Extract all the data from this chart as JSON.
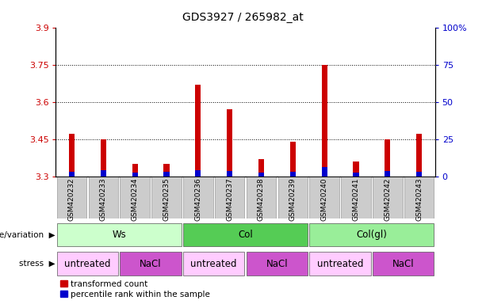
{
  "title": "GDS3927 / 265982_at",
  "samples": [
    "GSM420232",
    "GSM420233",
    "GSM420234",
    "GSM420235",
    "GSM420236",
    "GSM420237",
    "GSM420238",
    "GSM420239",
    "GSM420240",
    "GSM420241",
    "GSM420242",
    "GSM420243"
  ],
  "red_values": [
    3.47,
    3.45,
    3.35,
    3.35,
    3.67,
    3.57,
    3.37,
    3.44,
    3.75,
    3.36,
    3.45,
    3.47
  ],
  "blue_pct": [
    3.0,
    4.0,
    2.5,
    3.0,
    4.0,
    3.5,
    2.5,
    3.0,
    6.0,
    2.5,
    3.5,
    3.0
  ],
  "ymin": 3.3,
  "ymax": 3.9,
  "y2min": 0,
  "y2max": 100,
  "yticks": [
    3.3,
    3.45,
    3.6,
    3.75,
    3.9
  ],
  "y2ticks": [
    0,
    25,
    50,
    75,
    100
  ],
  "y2ticklabels": [
    "0",
    "25",
    "50",
    "75",
    "100%"
  ],
  "dotted_lines": [
    3.45,
    3.6,
    3.75
  ],
  "genotype_groups": [
    {
      "label": "Ws",
      "start": 0,
      "end": 4,
      "color": "#ccffcc"
    },
    {
      "label": "Col",
      "start": 4,
      "end": 8,
      "color": "#55cc55"
    },
    {
      "label": "Col(gl)",
      "start": 8,
      "end": 12,
      "color": "#99ee99"
    }
  ],
  "stress_groups": [
    {
      "label": "untreated",
      "start": 0,
      "end": 2,
      "color": "#ffccff"
    },
    {
      "label": "NaCl",
      "start": 2,
      "end": 4,
      "color": "#cc55cc"
    },
    {
      "label": "untreated",
      "start": 4,
      "end": 6,
      "color": "#ffccff"
    },
    {
      "label": "NaCl",
      "start": 6,
      "end": 8,
      "color": "#cc55cc"
    },
    {
      "label": "untreated",
      "start": 8,
      "end": 10,
      "color": "#ffccff"
    },
    {
      "label": "NaCl",
      "start": 10,
      "end": 12,
      "color": "#cc55cc"
    }
  ],
  "bar_width": 0.18,
  "red_color": "#cc0000",
  "blue_color": "#0000cc",
  "title_fontsize": 10,
  "left_tick_color": "#cc0000",
  "right_tick_color": "#0000cc",
  "genotype_row_label": "genotype/variation",
  "stress_row_label": "stress",
  "legend_red": "transformed count",
  "legend_blue": "percentile rank within the sample",
  "sample_box_color": "#cccccc"
}
